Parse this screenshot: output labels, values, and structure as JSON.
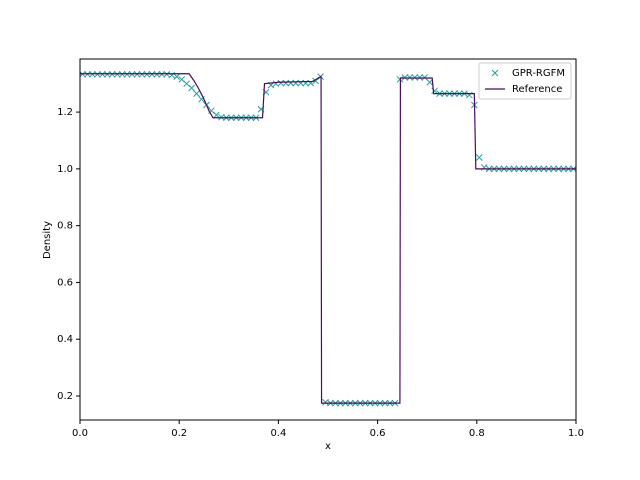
{
  "chart_data": {
    "type": "line",
    "xlabel": "x",
    "ylabel": "Density",
    "xlim": [
      0,
      1
    ],
    "ylim": [
      0.1155,
      1.387
    ],
    "xticks": [
      {
        "value": 0,
        "label": "0.0"
      },
      0.2,
      0.4,
      0.6,
      0.8,
      {
        "value": 1,
        "label": "1.0"
      }
    ],
    "yticks": [
      0.2,
      0.4,
      0.6,
      0.8,
      {
        "value": 1,
        "label": "1.0"
      },
      1.2
    ],
    "legend": "upper right",
    "series": [
      {
        "name": "GPR-RGFM",
        "type": "scatter",
        "color": "#2a9d9d",
        "x": [
          0.005,
          0.015,
          0.025,
          0.035,
          0.045,
          0.055,
          0.065,
          0.075,
          0.085,
          0.095,
          0.105,
          0.115,
          0.125,
          0.135,
          0.145,
          0.155,
          0.165,
          0.175,
          0.185,
          0.195,
          0.205,
          0.215,
          0.225,
          0.235,
          0.245,
          0.255,
          0.265,
          0.275,
          0.285,
          0.295,
          0.305,
          0.315,
          0.325,
          0.335,
          0.345,
          0.355,
          0.365,
          0.375,
          0.385,
          0.395,
          0.405,
          0.415,
          0.425,
          0.435,
          0.445,
          0.455,
          0.465,
          0.475,
          0.485,
          0.495,
          0.505,
          0.515,
          0.525,
          0.535,
          0.545,
          0.555,
          0.565,
          0.575,
          0.585,
          0.595,
          0.605,
          0.615,
          0.625,
          0.635,
          0.645,
          0.655,
          0.665,
          0.675,
          0.685,
          0.695,
          0.705,
          0.715,
          0.725,
          0.735,
          0.745,
          0.755,
          0.765,
          0.775,
          0.785,
          0.795,
          0.805,
          0.815,
          0.825,
          0.835,
          0.845,
          0.855,
          0.865,
          0.875,
          0.885,
          0.895,
          0.905,
          0.915,
          0.925,
          0.935,
          0.945,
          0.955,
          0.965,
          0.975,
          0.985,
          0.995
        ],
        "values": [
          1.333,
          1.333,
          1.333,
          1.333,
          1.333,
          1.333,
          1.333,
          1.333,
          1.333,
          1.333,
          1.333,
          1.333,
          1.333,
          1.333,
          1.333,
          1.333,
          1.333,
          1.333,
          1.33,
          1.325,
          1.315,
          1.3,
          1.285,
          1.265,
          1.245,
          1.225,
          1.205,
          1.19,
          1.182,
          1.18,
          1.18,
          1.18,
          1.18,
          1.18,
          1.18,
          1.18,
          1.21,
          1.27,
          1.295,
          1.3,
          1.302,
          1.302,
          1.302,
          1.302,
          1.302,
          1.302,
          1.302,
          1.31,
          1.325,
          0.178,
          0.175,
          0.175,
          0.175,
          0.175,
          0.175,
          0.175,
          0.175,
          0.175,
          0.175,
          0.175,
          0.175,
          0.175,
          0.175,
          0.175,
          1.315,
          1.322,
          1.322,
          1.322,
          1.322,
          1.322,
          1.305,
          1.275,
          1.265,
          1.265,
          1.265,
          1.265,
          1.265,
          1.265,
          1.26,
          1.225,
          1.04,
          1.005,
          1.0,
          1.0,
          1.0,
          1.0,
          1.0,
          1.0,
          1.0,
          1.0,
          1.0,
          1.0,
          1.0,
          1.0,
          1.0,
          1.0,
          1.0,
          1.0,
          1.0,
          1.0
        ]
      },
      {
        "name": "Reference",
        "type": "line",
        "color": "#4b0c5e",
        "x": [
          0,
          0.22,
          0.23,
          0.24,
          0.25,
          0.26,
          0.268,
          0.368,
          0.372,
          0.4,
          0.47,
          0.48,
          0.486,
          0.487,
          0.645,
          0.646,
          0.71,
          0.713,
          0.795,
          0.798,
          1.0
        ],
        "values": [
          1.335,
          1.335,
          1.31,
          1.28,
          1.245,
          1.205,
          1.18,
          1.18,
          1.3,
          1.305,
          1.308,
          1.32,
          1.325,
          0.175,
          0.175,
          1.32,
          1.32,
          1.265,
          1.265,
          1.0,
          1.0
        ]
      }
    ]
  }
}
